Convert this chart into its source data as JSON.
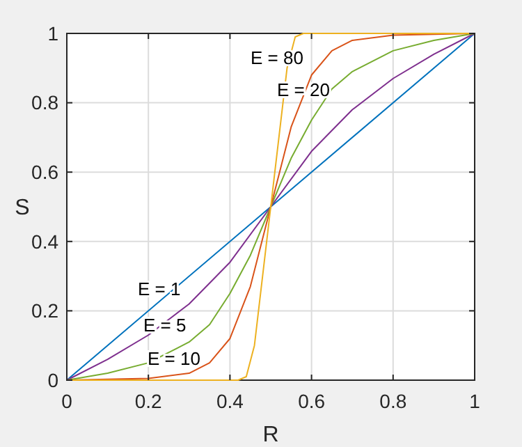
{
  "chart_data": {
    "type": "line",
    "xlabel": "R",
    "ylabel": "S",
    "xlim": [
      0,
      1
    ],
    "ylim": [
      0,
      1
    ],
    "xticks": [
      0,
      0.2,
      0.4,
      0.6,
      0.8,
      1
    ],
    "yticks": [
      0,
      0.2,
      0.4,
      0.6,
      0.8,
      1
    ],
    "grid": true,
    "line_style": "solid",
    "marker": "none",
    "series": [
      {
        "color": "#0072bd",
        "x": [
          0,
          0.5,
          1
        ],
        "values": [
          0,
          0.5,
          1
        ]
      },
      {
        "color": "#7e2f8e",
        "x": [
          0,
          0.1,
          0.2,
          0.3,
          0.4,
          0.5,
          0.6,
          0.7,
          0.8,
          0.9,
          1
        ],
        "values": [
          0,
          0.06,
          0.13,
          0.22,
          0.34,
          0.5,
          0.66,
          0.78,
          0.87,
          0.94,
          1
        ]
      },
      {
        "color": "#77ac30",
        "x": [
          0,
          0.1,
          0.2,
          0.3,
          0.35,
          0.4,
          0.45,
          0.5,
          0.55,
          0.6,
          0.65,
          0.7,
          0.8,
          0.9,
          1
        ],
        "values": [
          0,
          0.02,
          0.05,
          0.11,
          0.16,
          0.25,
          0.36,
          0.5,
          0.64,
          0.75,
          0.84,
          0.89,
          0.95,
          0.98,
          1
        ]
      },
      {
        "color": "#d95319",
        "x": [
          0,
          0.2,
          0.3,
          0.35,
          0.4,
          0.45,
          0.5,
          0.55,
          0.6,
          0.65,
          0.7,
          0.8,
          1
        ],
        "values": [
          0,
          0.005,
          0.02,
          0.05,
          0.12,
          0.27,
          0.5,
          0.73,
          0.88,
          0.95,
          0.98,
          0.995,
          1
        ]
      },
      {
        "color": "#edb120",
        "x": [
          0,
          0.42,
          0.44,
          0.46,
          0.48,
          0.5,
          0.52,
          0.54,
          0.56,
          0.58,
          1
        ],
        "values": [
          0,
          0,
          0.01,
          0.1,
          0.3,
          0.5,
          0.7,
          0.9,
          0.99,
          1,
          1
        ]
      }
    ],
    "annotations": [
      "E = 80",
      "E = 20",
      "E = 1",
      "E = 5",
      "E = 10"
    ]
  }
}
